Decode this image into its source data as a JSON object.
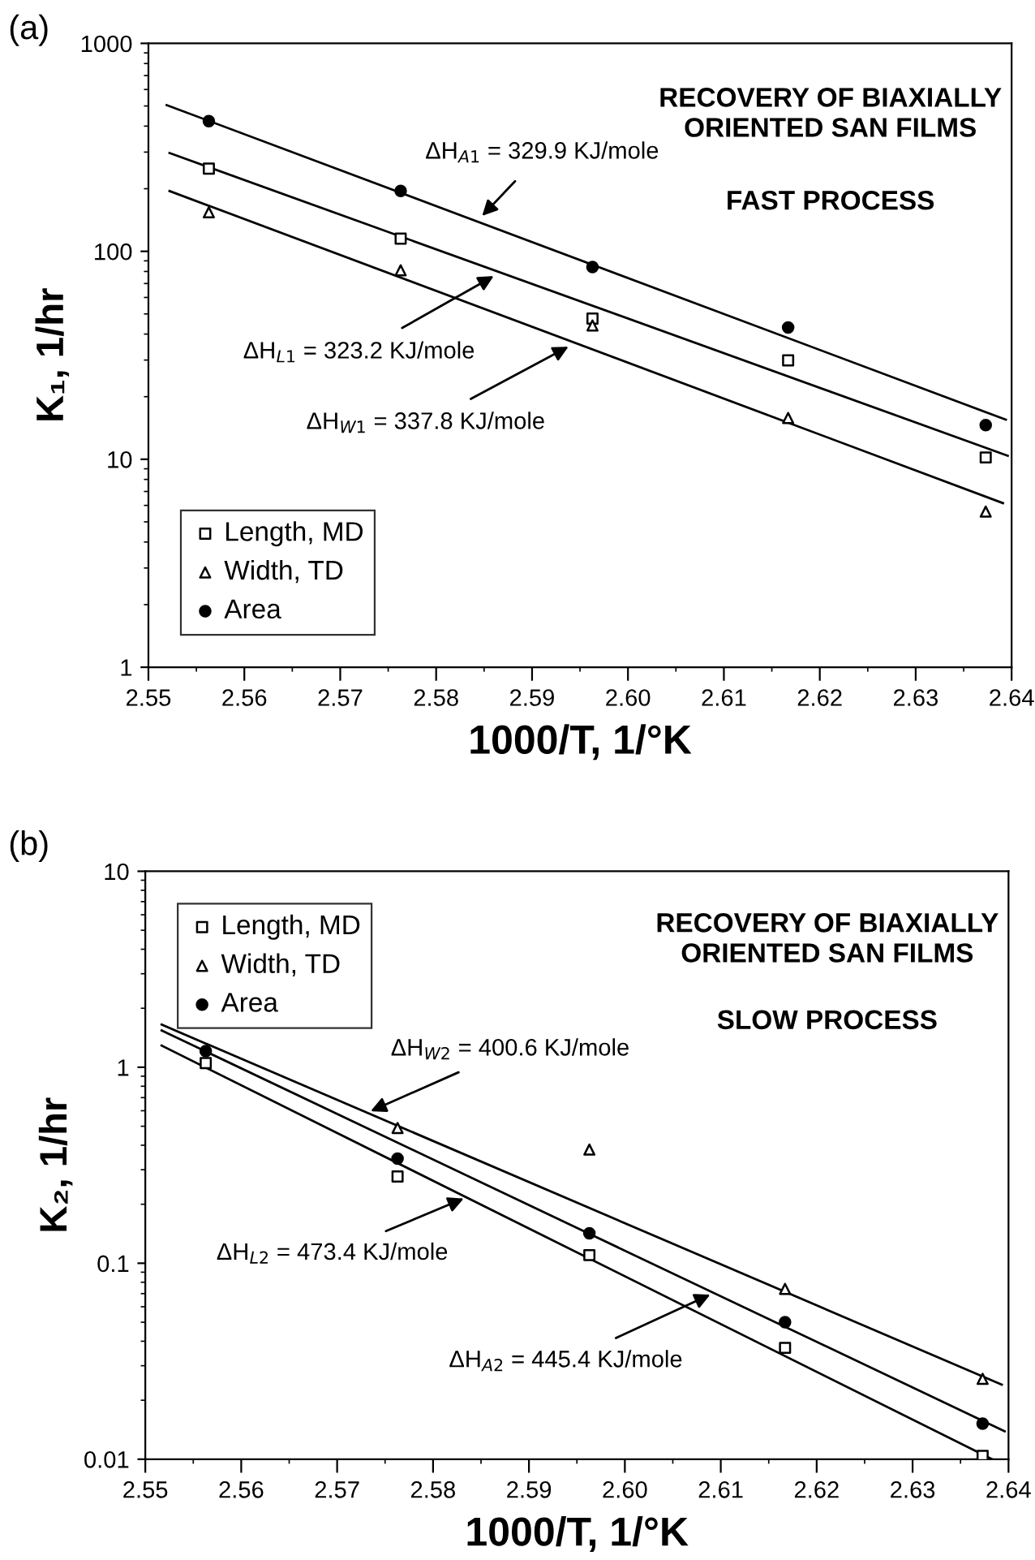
{
  "chart_data": [
    {
      "type": "scatter",
      "title": "(a)",
      "xlabel": "1000/T, 1/°K",
      "ylabel": "K₁, 1/hr",
      "log": "y",
      "legend": "bottom left",
      "grid": false,
      "xlim": [
        2.55,
        2.64
      ],
      "ylim": [
        1,
        1000
      ],
      "xticks": [
        {
          "value": 2.55,
          "label": "2.55"
        },
        {
          "value": 2.56,
          "label": "2.56"
        },
        {
          "value": 2.57,
          "label": "2.57"
        },
        {
          "value": 2.58,
          "label": "2.58"
        },
        {
          "value": 2.59,
          "label": "2.59"
        },
        {
          "value": 2.6,
          "label": "2.60"
        },
        {
          "value": 2.61,
          "label": "2.61"
        },
        {
          "value": 2.62,
          "label": "2.62"
        },
        {
          "value": 2.63,
          "label": "2.63"
        },
        {
          "value": 2.64,
          "label": "2.64"
        }
      ],
      "yticks": [
        1,
        10,
        100,
        1000
      ],
      "x": [
        2.5563,
        2.5763,
        2.5963,
        2.6167,
        2.6373
      ],
      "series": [
        {
          "name": "Length, MD",
          "marker": "square",
          "color": "#000000",
          "values": [
            250,
            115,
            47.5,
            29.9,
            10.2
          ]
        },
        {
          "name": "Width, TD",
          "marker": "triangle",
          "color": "#000000",
          "values": [
            154,
            81,
            44,
            15.8,
            5.6
          ]
        },
        {
          "name": "Area",
          "marker": "circle",
          "color": "#000000",
          "values": [
            423,
            195,
            84,
            43,
            14.6
          ]
        },
        {
          "type": "line",
          "marker": "none",
          "color": "#000000",
          "x": [
            2.5519,
            2.6394
          ],
          "values": [
            505,
            15.5
          ]
        },
        {
          "type": "line",
          "marker": "none",
          "color": "#000000",
          "x": [
            2.5522,
            2.6396
          ],
          "values": [
            297,
            10.4
          ]
        },
        {
          "type": "line",
          "marker": "none",
          "color": "#000000",
          "x": [
            2.5522,
            2.6391
          ],
          "values": [
            195,
            6.15
          ]
        }
      ],
      "annotations": [
        "RECOVERY OF BIAXIALLY\nORIENTED SAN FILMS",
        "FAST PROCESS",
        {
          "text": "ΔH$_{A1}$ = 329.9 KJ/mole",
          "x": 2.5848,
          "y": 148
        },
        {
          "text": "ΔH$_{L1}$ = 323.2 KJ/mole",
          "x": 2.586,
          "y": 76
        },
        {
          "text": "ΔH$_{W1}$ = 337.8 KJ/mole",
          "x": 2.5938,
          "y": 34.8
        }
      ]
    },
    {
      "type": "scatter",
      "title": "(b)",
      "xlabel": "1000/T, 1/°K",
      "ylabel": "K₂, 1/hr",
      "log": "y",
      "legend": "top left",
      "grid": false,
      "xlim": [
        2.55,
        2.64
      ],
      "ylim": [
        0.01,
        10
      ],
      "xticks": [
        {
          "value": 2.55,
          "label": "2.55"
        },
        {
          "value": 2.56,
          "label": "2.56"
        },
        {
          "value": 2.57,
          "label": "2.57"
        },
        {
          "value": 2.58,
          "label": "2.58"
        },
        {
          "value": 2.59,
          "label": "2.59"
        },
        {
          "value": 2.6,
          "label": "2.60"
        },
        {
          "value": 2.61,
          "label": "2.61"
        },
        {
          "value": 2.62,
          "label": "2.62"
        },
        {
          "value": 2.63,
          "label": "2.63"
        },
        {
          "value": 2.64,
          "label": "2.64"
        }
      ],
      "yticks": [
        0.01,
        0.1,
        1,
        10
      ],
      "x": [
        2.5563,
        2.5763,
        2.5963,
        2.6167,
        2.6373
      ],
      "series": [
        {
          "name": "Length, MD",
          "marker": "square",
          "color": "#000000",
          "values": [
            1.05,
            0.277,
            0.11,
            0.037,
            0.0104
          ]
        },
        {
          "name": "Width, TD",
          "marker": "triangle",
          "color": "#000000",
          "values": [
            null,
            0.49,
            0.38,
            0.074,
            0.0257
          ]
        },
        {
          "name": "Area",
          "marker": "circle",
          "color": "#000000",
          "values": [
            1.21,
            0.342,
            0.142,
            0.05,
            0.0152
          ]
        },
        {
          "type": "line",
          "marker": "none",
          "color": "#000000",
          "x": [
            2.5517,
            2.6393
          ],
          "values": [
            1.65,
            0.024
          ]
        },
        {
          "type": "line",
          "marker": "none",
          "color": "#000000",
          "x": [
            2.5517,
            2.6396
          ],
          "values": [
            1.54,
            0.0139
          ]
        },
        {
          "type": "line",
          "marker": "none",
          "color": "#000000",
          "x": [
            2.5517,
            2.6383
          ],
          "values": [
            1.29,
            0.01
          ]
        }
      ],
      "annotations": [
        "RECOVERY OF BIAXIALLY\nORIENTED SAN FILMS",
        "SLOW PROCESS",
        {
          "text": "ΔH$_{W2}$ = 400.6 KJ/mole",
          "x": 2.5735,
          "y": 0.597
        },
        {
          "text": "ΔH$_{L2}$ = 473.4 KJ/mole",
          "x": 2.5832,
          "y": 0.214
        },
        {
          "text": "ΔH$_{A2}$ = 445.4 KJ/mole",
          "x": 2.6089,
          "y": 0.0692
        }
      ]
    }
  ]
}
